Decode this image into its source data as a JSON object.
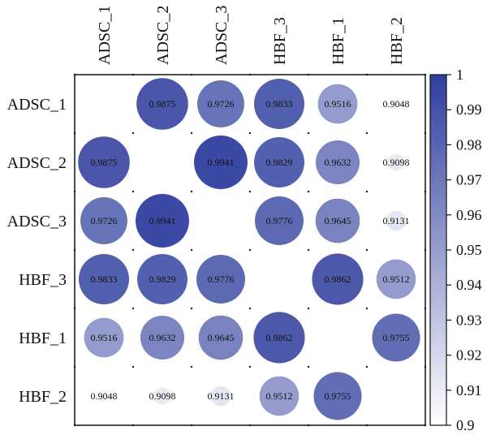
{
  "chart_data": {
    "type": "heatmap",
    "subtype": "correlation-circle-matrix",
    "title": "",
    "row_labels": [
      "ADSC_1",
      "ADSC_2",
      "ADSC_3",
      "HBF_3",
      "HBF_1",
      "HBF_2"
    ],
    "col_labels": [
      "ADSC_1",
      "ADSC_2",
      "ADSC_3",
      "HBF_3",
      "HBF_1",
      "HBF_2"
    ],
    "values": [
      [
        null,
        0.9875,
        0.9726,
        0.9833,
        0.9516,
        0.9048
      ],
      [
        0.9875,
        null,
        0.9941,
        0.9829,
        0.9632,
        0.9098
      ],
      [
        0.9726,
        0.9941,
        null,
        0.9776,
        0.9645,
        0.9131
      ],
      [
        0.9833,
        0.9829,
        0.9776,
        null,
        0.9862,
        0.9512
      ],
      [
        0.9516,
        0.9632,
        0.9645,
        0.9862,
        null,
        0.9755
      ],
      [
        0.9048,
        0.9098,
        0.9131,
        0.9512,
        0.9755,
        null
      ]
    ],
    "value_labels": [
      [
        "",
        "0.9875",
        "0.9726",
        "0.9833",
        "0.9516",
        "0.9048"
      ],
      [
        "0.9875",
        "",
        "0.9941",
        "0.9829",
        "0.9632",
        "0.9098"
      ],
      [
        "0.9726",
        "0.9941",
        "",
        "0.9776",
        "0.9645",
        "0.9131"
      ],
      [
        "0.9833",
        "0.9829",
        "0.9776",
        "",
        "0.9862",
        "0.9512"
      ],
      [
        "0.9516",
        "0.9632",
        "0.9645",
        "0.9862",
        "",
        "0.9755"
      ],
      [
        "0.9048",
        "0.9098",
        "0.9131",
        "0.9512",
        "0.9755",
        ""
      ]
    ],
    "colorbar": {
      "range": [
        0.9,
        1
      ],
      "ticks": [
        "1",
        "0.99",
        "0.98",
        "0.97",
        "0.96",
        "0.95",
        "0.94",
        "0.93",
        "0.92",
        "0.91",
        "0.9"
      ],
      "color_low": "#ffffff",
      "color_high": "#2f3e9e"
    },
    "grid": "dotted",
    "legend_position": "right"
  }
}
